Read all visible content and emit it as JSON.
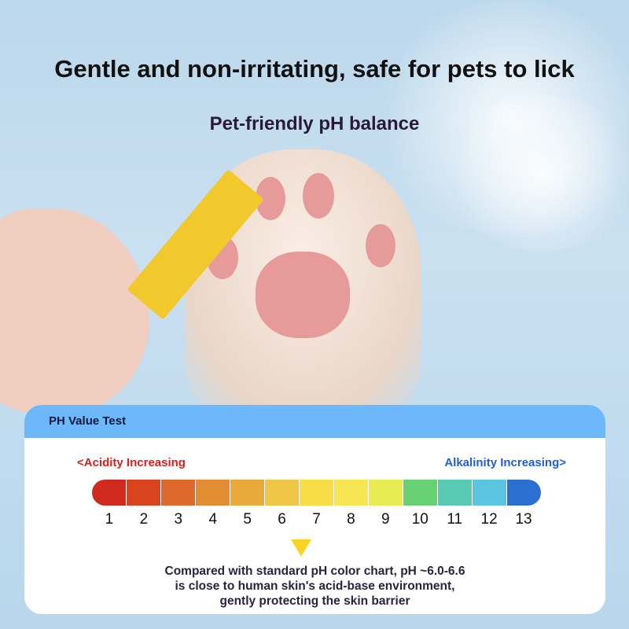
{
  "headline": "Gentle and non-irritating, safe for pets to lick",
  "subheadline": "Pet-friendly pH balance",
  "card": {
    "title": "PH Value Test",
    "acid_label": "<Acidity Increasing",
    "alkaline_label": "Alkalinity Increasing>",
    "acid_color": "#d7201c",
    "alkaline_color": "#1f5fd6",
    "scale": [
      {
        "value": "1",
        "color": "#d02a1e"
      },
      {
        "value": "2",
        "color": "#d9441f"
      },
      {
        "value": "3",
        "color": "#df692a"
      },
      {
        "value": "4",
        "color": "#e38c31"
      },
      {
        "value": "5",
        "color": "#eaa93b"
      },
      {
        "value": "6",
        "color": "#f0c646"
      },
      {
        "value": "7",
        "color": "#f8dc48"
      },
      {
        "value": "8",
        "color": "#f8e552"
      },
      {
        "value": "9",
        "color": "#e6ec52"
      },
      {
        "value": "10",
        "color": "#68d171"
      },
      {
        "value": "11",
        "color": "#58c9b2"
      },
      {
        "value": "12",
        "color": "#5ac4e1"
      },
      {
        "value": "13",
        "color": "#2b6fd1"
      }
    ],
    "indicator_ph": "6.0-6.6",
    "note": [
      "Compared with standard pH color chart, pH ~6.0-6.6",
      "is close to human skin's acid-base environment,",
      "gently protecting the skin barrier"
    ]
  }
}
